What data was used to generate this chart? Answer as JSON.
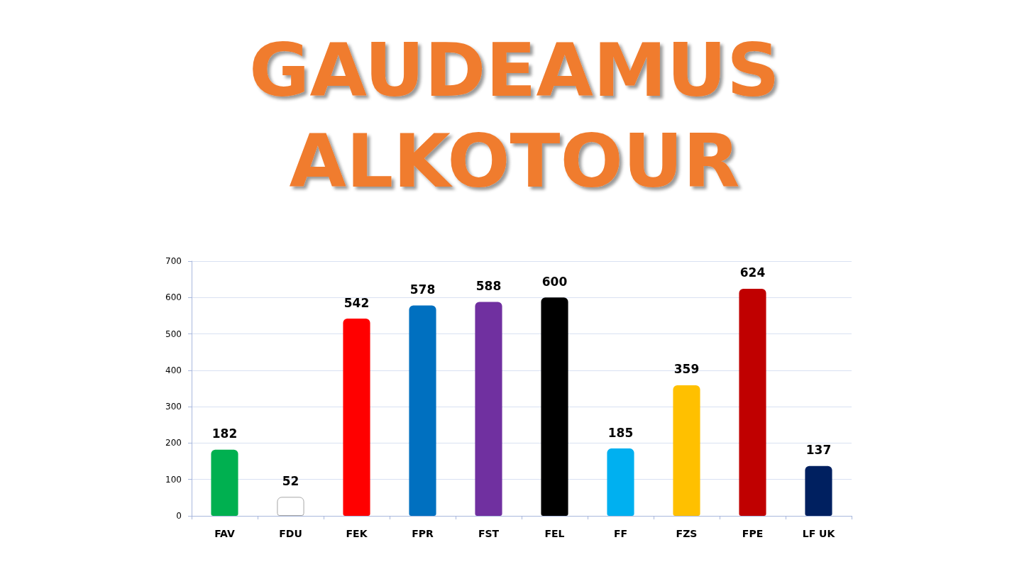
{
  "chart_data": {
    "type": "bar",
    "title": "GAUDEAMUS\nALKOTOUR",
    "categories": [
      "FAV",
      "FDU",
      "FEK",
      "FPR",
      "FST",
      "FEL",
      "FF",
      "FZS",
      "FPE",
      "LF UK"
    ],
    "values": [
      182,
      52,
      542,
      578,
      588,
      600,
      185,
      359,
      624,
      137
    ],
    "colors": [
      "#00b050",
      "#ffffff",
      "#ff0000",
      "#0070c0",
      "#7030a0",
      "#000000",
      "#00b0f0",
      "#ffc000",
      "#c00000",
      "#002060"
    ],
    "ylim": [
      0,
      700
    ],
    "yticks": [
      0,
      100,
      200,
      300,
      400,
      500,
      600,
      700
    ],
    "grid": "y",
    "data_labels": true
  }
}
